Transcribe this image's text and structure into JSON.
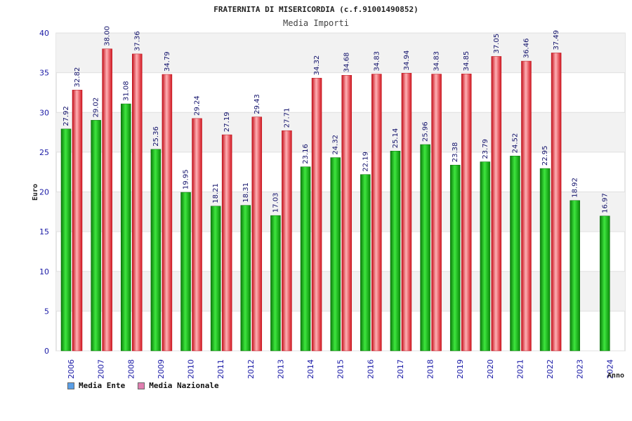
{
  "chart_data": {
    "type": "bar",
    "title": "FRATERNITA DI MISERICORDIA (c.f.91001490852)",
    "subtitle": "Media Importi",
    "xlabel": "Anno",
    "ylabel": "Euro",
    "ylim": [
      0,
      40
    ],
    "yticks": [
      "0",
      "5",
      "10",
      "15",
      "20",
      "25",
      "30",
      "35",
      "40"
    ],
    "categories": [
      "2006",
      "2007",
      "2008",
      "2009",
      "2010",
      "2011",
      "2012",
      "2013",
      "2014",
      "2015",
      "2016",
      "2017",
      "2018",
      "2019",
      "2020",
      "2021",
      "2022",
      "2023",
      "2024"
    ],
    "series": [
      {
        "name": "Media Ente",
        "values": [
          27.92,
          29.02,
          31.08,
          25.36,
          19.95,
          18.21,
          18.31,
          17.03,
          23.16,
          24.32,
          22.19,
          25.14,
          25.96,
          23.38,
          23.79,
          24.52,
          22.95,
          18.92,
          16.97
        ],
        "labels": [
          "27.92",
          "29.02",
          "31.08",
          "25.36",
          "19.95",
          "18.21",
          "18.31",
          "17.03",
          "23.16",
          "24.32",
          "22.19",
          "25.14",
          "25.96",
          "23.38",
          "23.79",
          "24.52",
          "22.95",
          "18.92",
          "16.97"
        ],
        "color": "#12b512",
        "legend_color": "#5b9fe6"
      },
      {
        "name": "Media Nazionale",
        "values": [
          32.82,
          38.0,
          37.36,
          34.79,
          29.24,
          27.19,
          29.43,
          27.71,
          34.32,
          34.68,
          34.83,
          34.94,
          34.83,
          34.85,
          37.05,
          36.46,
          37.49,
          null,
          null
        ],
        "labels": [
          "32.82",
          "38.00",
          "37.36",
          "34.79",
          "29.24",
          "27.19",
          "29.43",
          "27.71",
          "34.32",
          "34.68",
          "34.83",
          "34.94",
          "34.83",
          "34.85",
          "37.05",
          "36.46",
          "37.49",
          null,
          null
        ],
        "color": "#e62a34",
        "legend_color": "#e07fb0"
      }
    ]
  }
}
